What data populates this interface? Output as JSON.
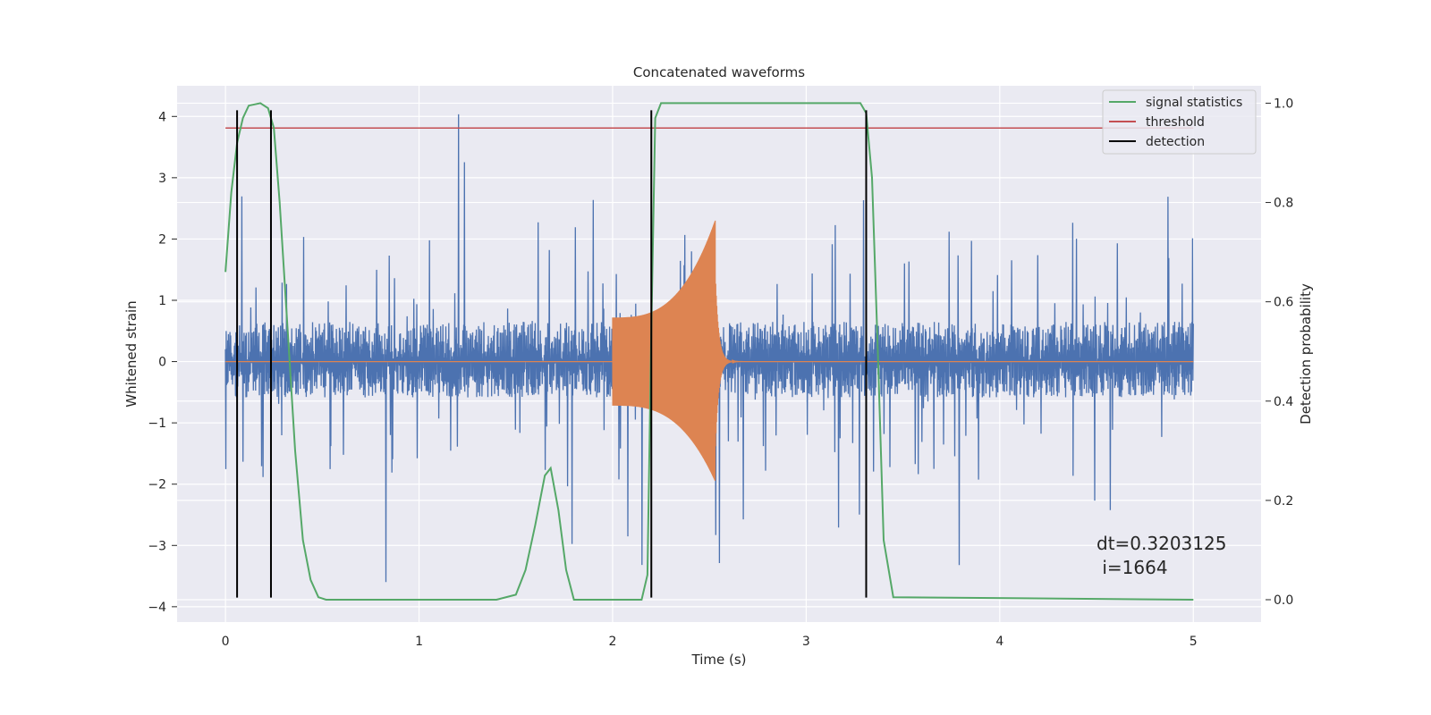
{
  "chart_data": {
    "type": "line",
    "title": "Concatenated waveforms",
    "xlabel": "Time (s)",
    "ylabel": "Whitened strain",
    "ylabel_right": "Detection probability",
    "xlim": [
      -0.25,
      5.35
    ],
    "ylim": [
      -4.25,
      4.5
    ],
    "ylim_right": [
      -0.045,
      1.035
    ],
    "x_ticks": [
      0,
      1,
      2,
      3,
      4,
      5
    ],
    "y_ticks": [
      -4,
      -3,
      -2,
      -1,
      0,
      1,
      2,
      3,
      4
    ],
    "y_ticks_right": [
      0.0,
      0.2,
      0.4,
      0.6,
      0.8,
      1.0
    ],
    "grid": true,
    "legend_position": "top-right",
    "series": [
      {
        "name": "",
        "axis": "left",
        "kind": "noise",
        "color": "#4c72b0",
        "x_range": [
          0,
          5
        ],
        "amplitude_core": 0.65,
        "amplitude_peak_range": [
          -3.6,
          4.1
        ]
      },
      {
        "name": "",
        "axis": "left",
        "kind": "chirp",
        "color": "#dd8452",
        "x_range": [
          0,
          5
        ],
        "chirp_start": 2.0,
        "chirp_end": 2.53,
        "envelope_start": 0.72,
        "envelope_peak_upper": 2.3,
        "envelope_peak_lower": -1.95,
        "ringdown_end": 2.7
      },
      {
        "name": "signal statistics",
        "axis": "right",
        "color": "#55a868",
        "x": [
          0,
          0.03,
          0.06,
          0.09,
          0.12,
          0.18,
          0.22,
          0.25,
          0.28,
          0.32,
          0.36,
          0.4,
          0.44,
          0.48,
          0.52,
          1.4,
          1.5,
          1.55,
          1.6,
          1.65,
          1.68,
          1.72,
          1.76,
          1.8,
          2.15,
          2.18,
          2.2,
          2.22,
          2.25,
          3.28,
          3.31,
          3.34,
          3.37,
          3.4,
          3.45,
          5.0
        ],
        "values": [
          0.66,
          0.82,
          0.92,
          0.97,
          0.995,
          1.0,
          0.99,
          0.95,
          0.8,
          0.55,
          0.3,
          0.12,
          0.04,
          0.005,
          0.0,
          0.0,
          0.01,
          0.06,
          0.15,
          0.25,
          0.265,
          0.18,
          0.06,
          0.0,
          0.0,
          0.05,
          0.55,
          0.97,
          1.0,
          1.0,
          0.98,
          0.85,
          0.5,
          0.12,
          0.005,
          0.0
        ]
      },
      {
        "name": "threshold",
        "axis": "right",
        "color": "#c44e52",
        "x": [
          0,
          5
        ],
        "values": [
          0.95,
          0.95
        ]
      },
      {
        "name": "detection",
        "axis": "left",
        "color": "#000000",
        "kind": "vlines",
        "x": [
          0.06,
          0.235,
          2.2,
          3.31
        ],
        "y_range": [
          -3.85,
          4.1
        ]
      }
    ],
    "annotation": {
      "line1": "dt=0.3203125",
      "line2": " i=1664",
      "x": 4.5,
      "y": -3.0
    }
  }
}
